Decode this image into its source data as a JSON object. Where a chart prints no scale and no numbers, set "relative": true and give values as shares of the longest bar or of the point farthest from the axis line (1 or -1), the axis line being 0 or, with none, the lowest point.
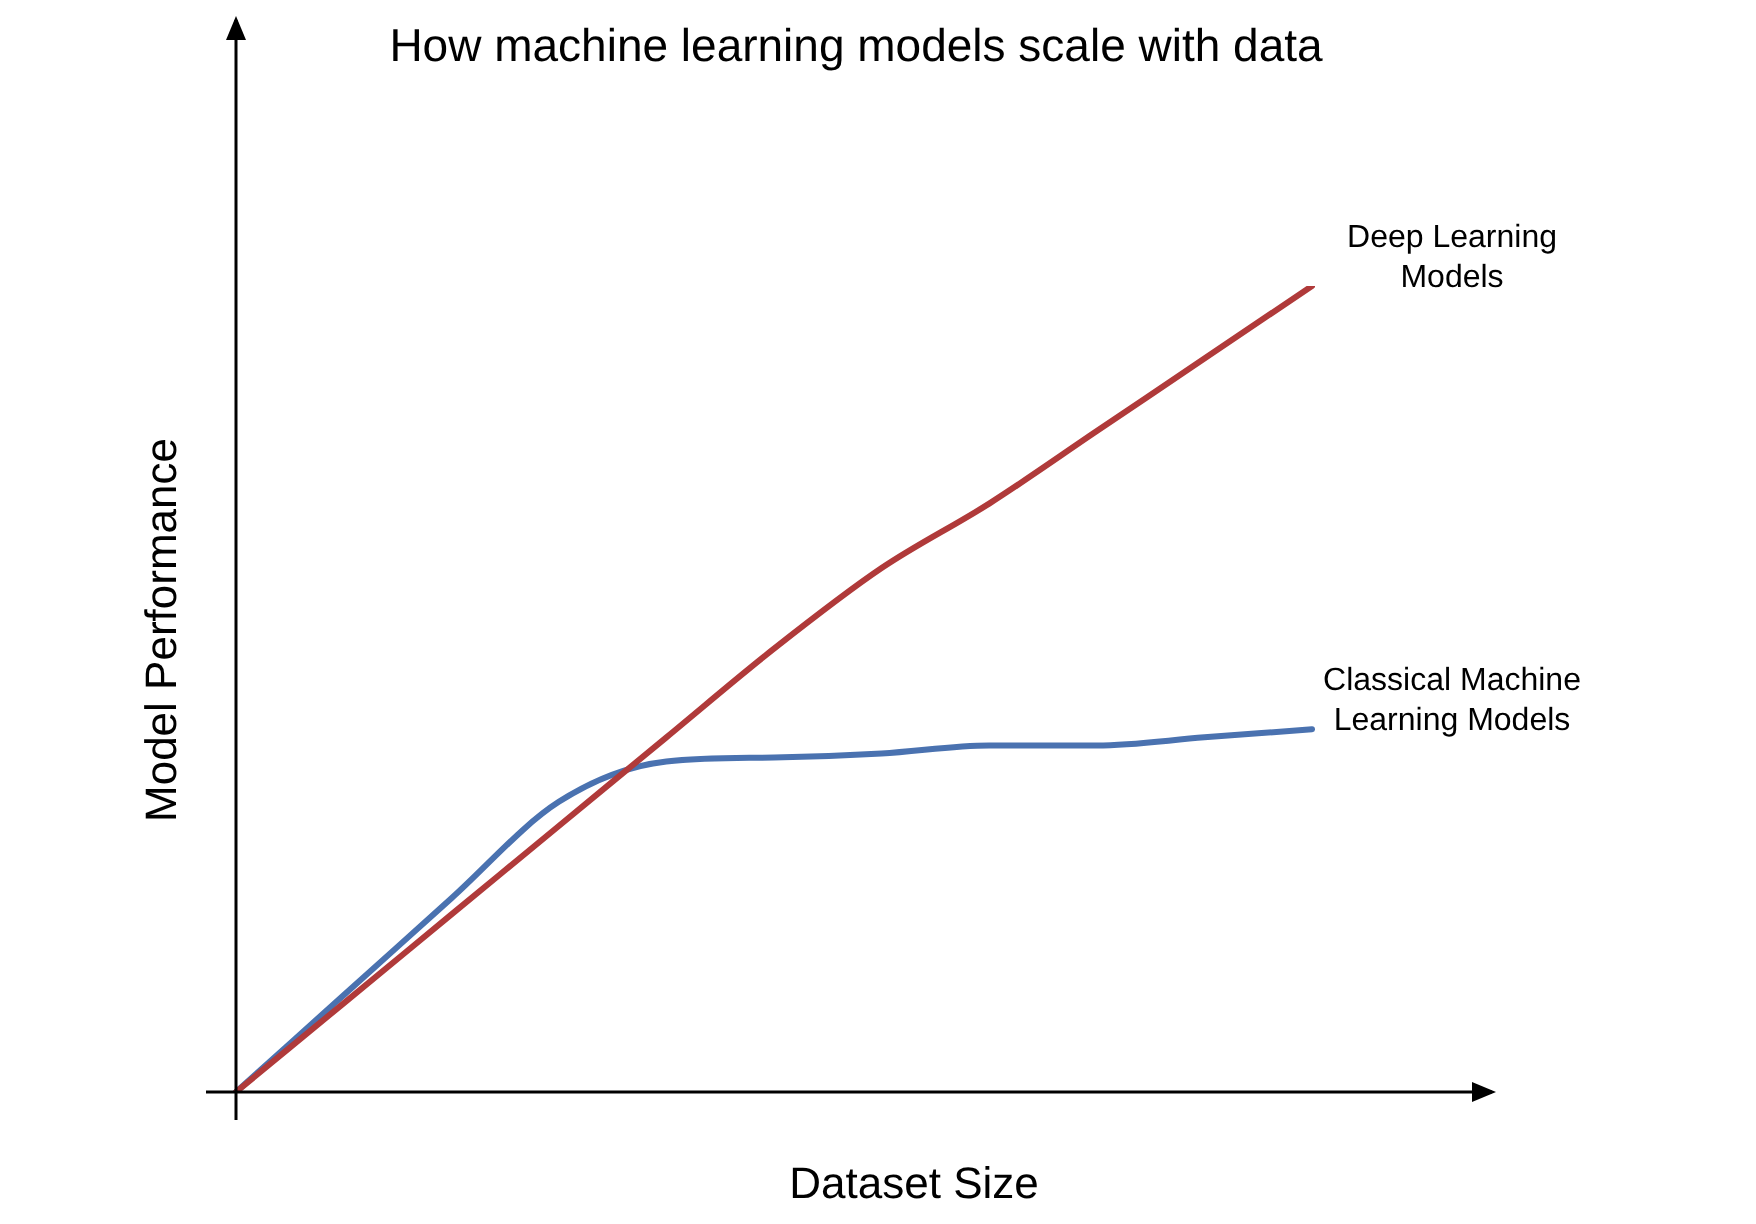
{
  "chart_data": {
    "type": "line",
    "title": "How machine learning models scale with data",
    "xlabel": "Dataset Size",
    "ylabel": "Model Performance",
    "relative": true,
    "tick_labels": false,
    "legend": false,
    "categories": [
      null,
      null,
      null,
      null,
      null,
      null,
      null,
      null,
      null,
      null,
      null
    ],
    "series": [
      {
        "name": "Deep Learning Models",
        "color": "#b03a3a",
        "values": [
          0,
          0.11,
          0.22,
          0.33,
          0.44,
          0.55,
          0.65,
          0.73,
          0.82,
          0.91,
          1
        ]
      },
      {
        "name": "Classical Machine Learning Models",
        "color": "#4a72b0",
        "values": [
          0,
          0.12,
          0.24,
          0.36,
          0.41,
          0.415,
          0.42,
          0.43,
          0.43,
          0.44,
          0.45
        ]
      }
    ]
  }
}
